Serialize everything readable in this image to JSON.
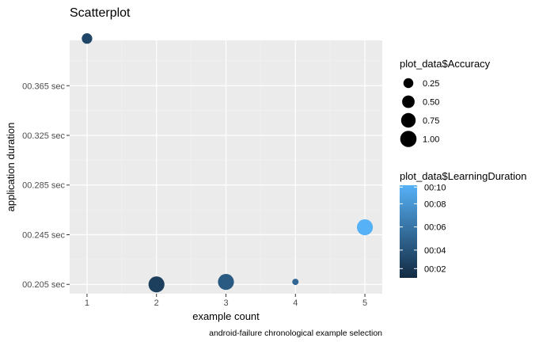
{
  "chart_data": {
    "type": "scatter",
    "title": "Scatterplot",
    "xlabel": "example count",
    "ylabel": "application duration",
    "caption": "android-failure chronological example selection",
    "xlim": [
      0.75,
      5.25
    ],
    "ylim": [
      0.1975,
      0.4015
    ],
    "x_ticks": [
      {
        "value": 1,
        "label": "1"
      },
      {
        "value": 2,
        "label": "2"
      },
      {
        "value": 3,
        "label": "3"
      },
      {
        "value": 4,
        "label": "4"
      },
      {
        "value": 5,
        "label": "5"
      }
    ],
    "y_ticks": [
      {
        "value": 0.205,
        "label": "00.205 sec"
      },
      {
        "value": 0.245,
        "label": "00.245 sec"
      },
      {
        "value": 0.285,
        "label": "00.285 sec"
      },
      {
        "value": 0.325,
        "label": "00.325 sec"
      },
      {
        "value": 0.365,
        "label": "00.365 sec"
      }
    ],
    "points": [
      {
        "x": 1,
        "y": 0.403,
        "accuracy": 0.3,
        "learning_duration": 0.2
      },
      {
        "x": 2,
        "y": 0.205,
        "accuracy": 0.95,
        "learning_duration": 0.15
      },
      {
        "x": 3,
        "y": 0.207,
        "accuracy": 0.95,
        "learning_duration": 0.35
      },
      {
        "x": 4,
        "y": 0.207,
        "accuracy": 0.05,
        "learning_duration": 0.45
      },
      {
        "x": 5,
        "y": 0.251,
        "accuracy": 0.95,
        "learning_duration": 1.0
      }
    ],
    "size_legend": {
      "title": "plot_data$Accuracy",
      "entries": [
        {
          "value": 0.25,
          "label": "0.25"
        },
        {
          "value": 0.5,
          "label": "0.50"
        },
        {
          "value": 0.75,
          "label": "0.75"
        },
        {
          "value": 1.0,
          "label": "1.00"
        }
      ]
    },
    "color_legend": {
      "title": "plot_data$LearningDuration",
      "low_color": "#132b43",
      "high_color": "#56b1f7",
      "ticks": [
        {
          "value": 0.1,
          "label": "00:02"
        },
        {
          "value": 0.3,
          "label": "00:04"
        },
        {
          "value": 0.55,
          "label": "00:06"
        },
        {
          "value": 0.8,
          "label": "00:08"
        },
        {
          "value": 0.98,
          "label": "00:10"
        }
      ]
    },
    "panel_background": "#ebebeb",
    "grid": true,
    "legend_position": "right"
  }
}
